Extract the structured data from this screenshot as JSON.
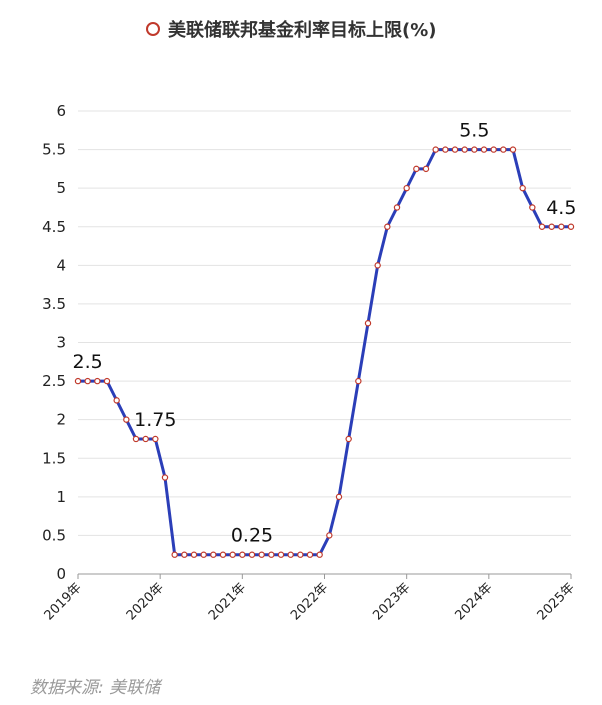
{
  "chart_data": {
    "type": "line",
    "title": "美联储联邦基金利率目标上限(%)",
    "legend_marker": "circle",
    "legend_placement": "top-center",
    "grid": true,
    "ylim": [
      0,
      6
    ],
    "yticks": [
      "0",
      "0.5",
      "1",
      "1.5",
      "2",
      "2.5",
      "3",
      "3.5",
      "4",
      "4.5",
      "5",
      "5.5",
      "6"
    ],
    "xticks": [
      "2019年",
      "2020年",
      "2021年",
      "2022年",
      "2023年",
      "2024年",
      "2025年"
    ],
    "line_color": "#2b3eb8",
    "marker_edge_color": "#c0392b",
    "series": [
      {
        "values": [
          2.5,
          2.5,
          2.5,
          2.5,
          2.25,
          2.0,
          1.75,
          1.75,
          1.75,
          1.25,
          0.25,
          0.25,
          0.25,
          0.25,
          0.25,
          0.25,
          0.25,
          0.25,
          0.25,
          0.25,
          0.25,
          0.25,
          0.25,
          0.25,
          0.25,
          0.25,
          0.5,
          1.0,
          1.75,
          2.5,
          3.25,
          4.0,
          4.5,
          4.75,
          5.0,
          5.25,
          5.25,
          5.5,
          5.5,
          5.5,
          5.5,
          5.5,
          5.5,
          5.5,
          5.5,
          5.5,
          5.0,
          4.75,
          4.5,
          4.5,
          4.5,
          4.5
        ]
      }
    ],
    "annotations": [
      {
        "text": "2.5",
        "index": 1
      },
      {
        "text": "1.75",
        "index": 8
      },
      {
        "text": "0.25",
        "index": 18
      },
      {
        "text": "5.5",
        "index": 41
      },
      {
        "text": "4.5",
        "index": 50
      }
    ]
  },
  "source": "数据来源: 美联储"
}
